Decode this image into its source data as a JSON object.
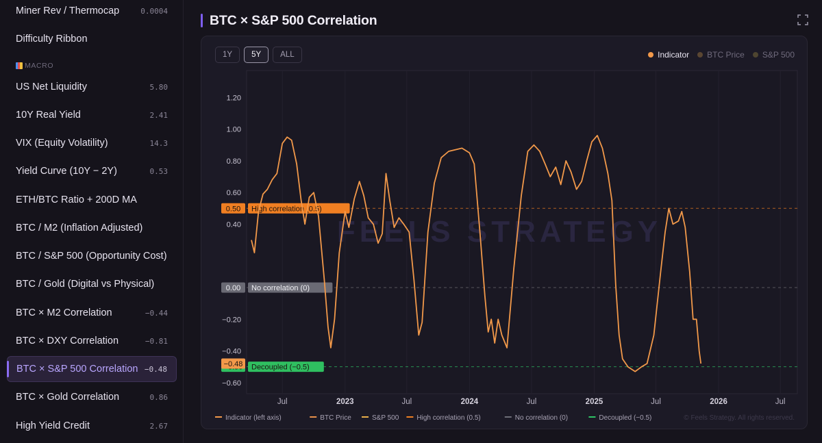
{
  "sidebar": {
    "section_macro": "MACRO",
    "items": [
      {
        "label": "Miner Rev / Thermocap",
        "value": "0.0004"
      },
      {
        "label": "Difficulty Ribbon",
        "value": ""
      },
      {
        "label": "US Net Liquidity",
        "value": "5.80"
      },
      {
        "label": "10Y Real Yield",
        "value": "2.41"
      },
      {
        "label": "VIX (Equity Volatility)",
        "value": "14.3"
      },
      {
        "label": "Yield Curve (10Y − 2Y)",
        "value": "0.53"
      },
      {
        "label": "ETH/BTC Ratio + 200D MA",
        "value": ""
      },
      {
        "label": "BTC / M2 (Inflation Adjusted)",
        "value": ""
      },
      {
        "label": "BTC / S&P 500 (Opportunity Cost)",
        "value": ""
      },
      {
        "label": "BTC / Gold (Digital vs Physical)",
        "value": ""
      },
      {
        "label": "BTC × M2 Correlation",
        "value": "−0.44"
      },
      {
        "label": "BTC × DXY Correlation",
        "value": "−0.81"
      },
      {
        "label": "BTC × S&P 500 Correlation",
        "value": "−0.48"
      },
      {
        "label": "BTC × Gold Correlation",
        "value": "0.86"
      },
      {
        "label": "High Yield Credit",
        "value": "2.67"
      }
    ]
  },
  "main": {
    "title": "BTC × S&P 500 Correlation",
    "range_buttons": [
      "1Y",
      "5Y",
      "ALL"
    ],
    "active_range": "5Y"
  },
  "colors": {
    "indicator": "#f2994a",
    "btc_price": "#5a4632",
    "sp500": "#4e4530",
    "high_corr": "#f07f22",
    "no_corr": "#6e6e78",
    "decoupled": "#2fc566",
    "accent": "#7d5ef0"
  },
  "chart_data": {
    "type": "line",
    "title": "BTC × S&P 500 Correlation",
    "ylim": [
      -0.6,
      1.2
    ],
    "yticks": [
      "1.20",
      "1.00",
      "0.80",
      "0.60",
      "0.40",
      "−0.20",
      "−0.40",
      "−0.60"
    ],
    "xticks": [
      "Jul",
      "2023",
      "Jul",
      "2024",
      "Jul",
      "2025",
      "Jul",
      "2026",
      "Jul"
    ],
    "watermark": "FEELS STRATEGY",
    "copyright": "© Feels Strategy. All rights reserved.",
    "top_legend": [
      "Indicator",
      "BTC Price",
      "S&P 500"
    ],
    "bottom_legend": [
      "Indicator (left axis)",
      "BTC Price",
      "S&P 500",
      "High correlation (0.5)",
      "No correlation (0)",
      "Decoupled (−0.5)"
    ],
    "reference_lines": [
      {
        "value": 0.5,
        "value_label": "0.50",
        "label": "High correlation (0.5)"
      },
      {
        "value": 0.0,
        "value_label": "0.00",
        "label": "No correlation (0)"
      },
      {
        "value": -0.5,
        "value_label": "−0.50",
        "label": "Decoupled (−0.5)"
      }
    ],
    "current_value": -0.48,
    "current_value_label": "−0.48",
    "series": [
      {
        "name": "Indicator",
        "points": [
          [
            "2022-04-01",
            0.3
          ],
          [
            "2022-04-10",
            0.22
          ],
          [
            "2022-04-22",
            0.48
          ],
          [
            "2022-05-05",
            0.59
          ],
          [
            "2022-05-18",
            0.62
          ],
          [
            "2022-06-01",
            0.68
          ],
          [
            "2022-06-15",
            0.72
          ],
          [
            "2022-07-01",
            0.91
          ],
          [
            "2022-07-15",
            0.95
          ],
          [
            "2022-07-28",
            0.93
          ],
          [
            "2022-08-12",
            0.78
          ],
          [
            "2022-08-25",
            0.55
          ],
          [
            "2022-09-05",
            0.4
          ],
          [
            "2022-09-18",
            0.57
          ],
          [
            "2022-10-01",
            0.6
          ],
          [
            "2022-10-15",
            0.45
          ],
          [
            "2022-11-01",
            0.05
          ],
          [
            "2022-11-12",
            -0.25
          ],
          [
            "2022-11-20",
            -0.38
          ],
          [
            "2022-12-01",
            -0.2
          ],
          [
            "2022-12-15",
            0.22
          ],
          [
            "2023-01-01",
            0.48
          ],
          [
            "2023-01-12",
            0.38
          ],
          [
            "2023-01-28",
            0.56
          ],
          [
            "2023-02-12",
            0.67
          ],
          [
            "2023-02-25",
            0.58
          ],
          [
            "2023-03-10",
            0.44
          ],
          [
            "2023-03-25",
            0.4
          ],
          [
            "2023-04-08",
            0.28
          ],
          [
            "2023-04-20",
            0.34
          ],
          [
            "2023-05-01",
            0.72
          ],
          [
            "2023-05-12",
            0.55
          ],
          [
            "2023-05-25",
            0.38
          ],
          [
            "2023-06-08",
            0.44
          ],
          [
            "2023-06-22",
            0.4
          ],
          [
            "2023-07-08",
            0.35
          ],
          [
            "2023-07-22",
            0.05
          ],
          [
            "2023-08-05",
            -0.3
          ],
          [
            "2023-08-15",
            -0.22
          ],
          [
            "2023-09-01",
            0.35
          ],
          [
            "2023-09-20",
            0.66
          ],
          [
            "2023-10-10",
            0.82
          ],
          [
            "2023-11-01",
            0.86
          ],
          [
            "2023-11-20",
            0.87
          ],
          [
            "2023-12-10",
            0.88
          ],
          [
            "2024-01-01",
            0.85
          ],
          [
            "2024-01-15",
            0.78
          ],
          [
            "2024-02-01",
            0.34
          ],
          [
            "2024-02-15",
            -0.05
          ],
          [
            "2024-02-25",
            -0.28
          ],
          [
            "2024-03-05",
            -0.2
          ],
          [
            "2024-03-15",
            -0.35
          ],
          [
            "2024-03-25",
            -0.2
          ],
          [
            "2024-04-05",
            -0.3
          ],
          [
            "2024-04-20",
            -0.38
          ],
          [
            "2024-05-10",
            0.12
          ],
          [
            "2024-06-01",
            0.58
          ],
          [
            "2024-06-20",
            0.86
          ],
          [
            "2024-07-08",
            0.9
          ],
          [
            "2024-07-25",
            0.86
          ],
          [
            "2024-08-10",
            0.78
          ],
          [
            "2024-08-25",
            0.7
          ],
          [
            "2024-09-10",
            0.76
          ],
          [
            "2024-09-25",
            0.65
          ],
          [
            "2024-10-10",
            0.8
          ],
          [
            "2024-10-25",
            0.73
          ],
          [
            "2024-11-10",
            0.62
          ],
          [
            "2024-11-25",
            0.67
          ],
          [
            "2024-12-10",
            0.8
          ],
          [
            "2024-12-25",
            0.92
          ],
          [
            "2025-01-10",
            0.96
          ],
          [
            "2025-01-25",
            0.88
          ],
          [
            "2025-02-10",
            0.72
          ],
          [
            "2025-02-22",
            0.55
          ],
          [
            "2025-03-05",
            0.02
          ],
          [
            "2025-03-15",
            -0.3
          ],
          [
            "2025-03-25",
            -0.45
          ],
          [
            "2025-04-10",
            -0.5
          ],
          [
            "2025-05-01",
            -0.53
          ],
          [
            "2025-05-20",
            -0.5
          ],
          [
            "2025-06-05",
            -0.48
          ],
          [
            "2025-06-25",
            -0.3
          ],
          [
            "2025-07-15",
            0.1
          ],
          [
            "2025-07-28",
            0.35
          ],
          [
            "2025-08-08",
            0.5
          ],
          [
            "2025-08-20",
            0.4
          ],
          [
            "2025-09-05",
            0.42
          ],
          [
            "2025-09-15",
            0.48
          ],
          [
            "2025-09-25",
            0.38
          ],
          [
            "2025-10-08",
            0.1
          ],
          [
            "2025-10-18",
            -0.2
          ],
          [
            "2025-10-28",
            -0.2
          ],
          [
            "2025-11-05",
            -0.4
          ],
          [
            "2025-11-10",
            -0.48
          ]
        ]
      }
    ]
  }
}
